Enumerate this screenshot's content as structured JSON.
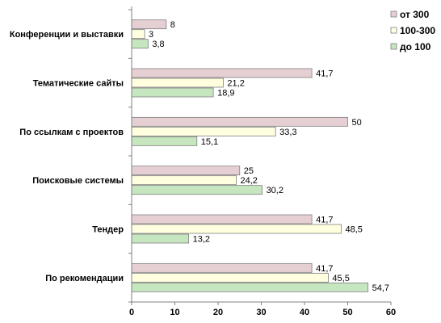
{
  "chart_data": {
    "type": "bar",
    "orientation": "horizontal",
    "categories": [
      "Конференции  и выставки",
      "Тематические  сайты",
      "По ссылкам  с проектов",
      "Поисковые  системы",
      "Тендер",
      "По рекомендации"
    ],
    "series": [
      {
        "name": "от 300",
        "color": "#e6cfd3",
        "values": [
          8,
          41.7,
          50,
          25,
          41.7,
          41.7
        ],
        "labels": [
          "8",
          "41,7",
          "50",
          "25",
          "41,7",
          "41,7"
        ]
      },
      {
        "name": "100-300",
        "color": "#ffffe0",
        "values": [
          3,
          21.2,
          33.3,
          24.2,
          48.5,
          45.5
        ],
        "labels": [
          "3",
          "21,2",
          "33,3",
          "24,2",
          "48,5",
          "45,5"
        ]
      },
      {
        "name": "до 100",
        "color": "#c6e6c0",
        "values": [
          3.8,
          18.9,
          15.1,
          30.2,
          13.2,
          54.7
        ],
        "labels": [
          "3,8",
          "18,9",
          "15,1",
          "30,2",
          "13,2",
          "54,7"
        ]
      }
    ],
    "xlim": [
      0,
      60
    ],
    "xticks": [
      0,
      10,
      20,
      30,
      40,
      50,
      60
    ],
    "legend": "top-right",
    "grid": false,
    "title": "",
    "xlabel": "",
    "ylabel": ""
  }
}
